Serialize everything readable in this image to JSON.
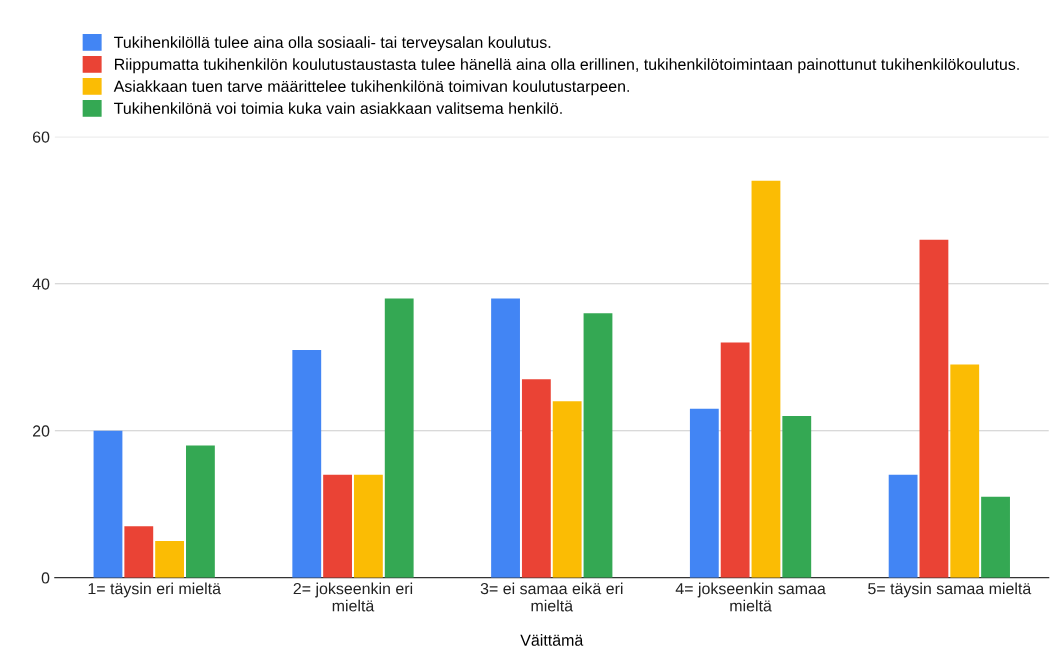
{
  "chart_data": {
    "type": "bar",
    "xlabel": "Väittämä",
    "categories": [
      "1= täysin eri mieltä",
      "2= jokseenkin eri mieltä",
      "3= ei samaa eikä eri mieltä",
      "4= jokseenkin samaa mieltä",
      "5= täysin samaa mieltä"
    ],
    "series": [
      {
        "name": "Tukihenkilöllä tulee aina olla sosiaali- tai terveysalan koulutus.",
        "color": "#4285f4",
        "values": [
          20,
          31,
          38,
          23,
          14
        ]
      },
      {
        "name": "Riippumatta tukihenkilön koulutustaustasta tulee hänellä aina olla erillinen, tukihenkilötoimintaan painottunut tukihenkilökoulutus.",
        "color": "#ea4335",
        "values": [
          7,
          14,
          27,
          32,
          46
        ]
      },
      {
        "name": "Asiakkaan tuen tarve määrittelee tukihenkilönä toimivan koulutustarpeen.",
        "color": "#fbbc04",
        "values": [
          5,
          14,
          24,
          54,
          29
        ]
      },
      {
        "name": "Tukihenkilönä voi toimia kuka vain asiakkaan valitsema henkilö.",
        "color": "#34a853",
        "values": [
          18,
          38,
          36,
          22,
          11
        ]
      }
    ],
    "ylim": [
      0,
      60
    ],
    "yticks": [
      0,
      20,
      40,
      60
    ],
    "grid": "y",
    "legend": "top"
  }
}
